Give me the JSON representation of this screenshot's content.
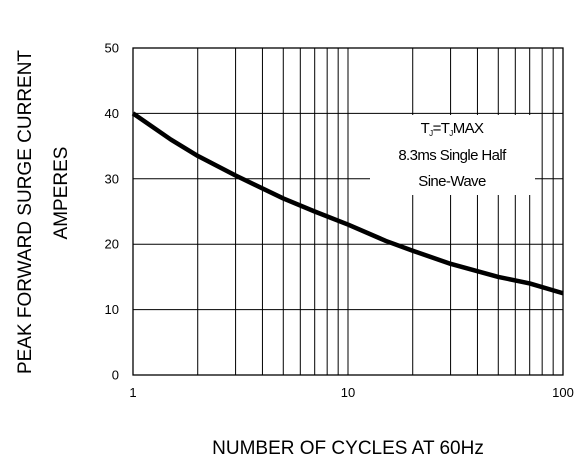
{
  "chart_data": {
    "type": "line",
    "title": "",
    "xlabel": "NUMBER  OF  CYCLES AT 60Hz",
    "ylabel_lines": [
      "PEAK FORWARD SURGE CURRENT",
      "AMPERES"
    ],
    "x_scale": "log",
    "xlim": [
      1,
      100
    ],
    "ylim": [
      0,
      50
    ],
    "x_ticks": [
      1,
      10,
      100
    ],
    "x_tick_labels": [
      "1",
      "10",
      "100"
    ],
    "y_ticks": [
      0,
      10,
      20,
      30,
      40,
      50
    ],
    "y_tick_labels": [
      "0",
      "10",
      "20",
      "30",
      "40",
      "50"
    ],
    "grid": true,
    "series": [
      {
        "x": [
          1,
          1.5,
          2,
          3,
          5,
          7,
          10,
          15,
          20,
          30,
          50,
          70,
          100
        ],
        "y": [
          40,
          36,
          33.5,
          30.5,
          27,
          25,
          23,
          20.5,
          19,
          17,
          15,
          14,
          12.5
        ]
      }
    ],
    "annotation": {
      "line1": {
        "t1": "T",
        "s1": "J",
        "mid": "=T",
        "s2": "J",
        "t2": "MAX"
      },
      "line2": "8.3ms Single Half",
      "line3": "Sine-Wave"
    }
  }
}
